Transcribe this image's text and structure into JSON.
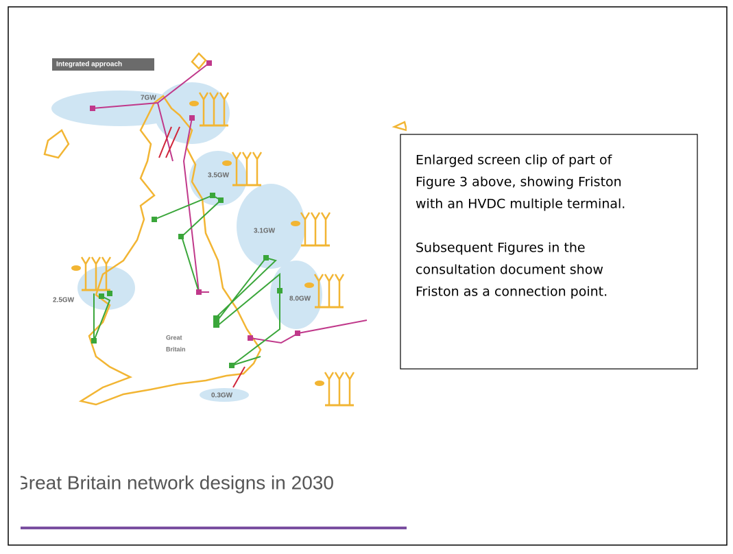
{
  "figure": {
    "badge": "Integrated approach",
    "zones": [
      "7GW",
      "3.5GW",
      "3.1GW",
      "8.0GW",
      "2.5GW",
      "0.3GW"
    ],
    "region": [
      "Great",
      "Britain"
    ],
    "caption": "Great Britain network designs in 2030"
  },
  "note": {
    "paragraphs": [
      [
        "Enlarged screen clip of part of",
        "Figure 3 above, showing Friston",
        "with an HVDC multiple terminal."
      ],
      [
        "Subsequent Figures in the",
        "consultation document show",
        "Friston as a connection point."
      ]
    ]
  }
}
